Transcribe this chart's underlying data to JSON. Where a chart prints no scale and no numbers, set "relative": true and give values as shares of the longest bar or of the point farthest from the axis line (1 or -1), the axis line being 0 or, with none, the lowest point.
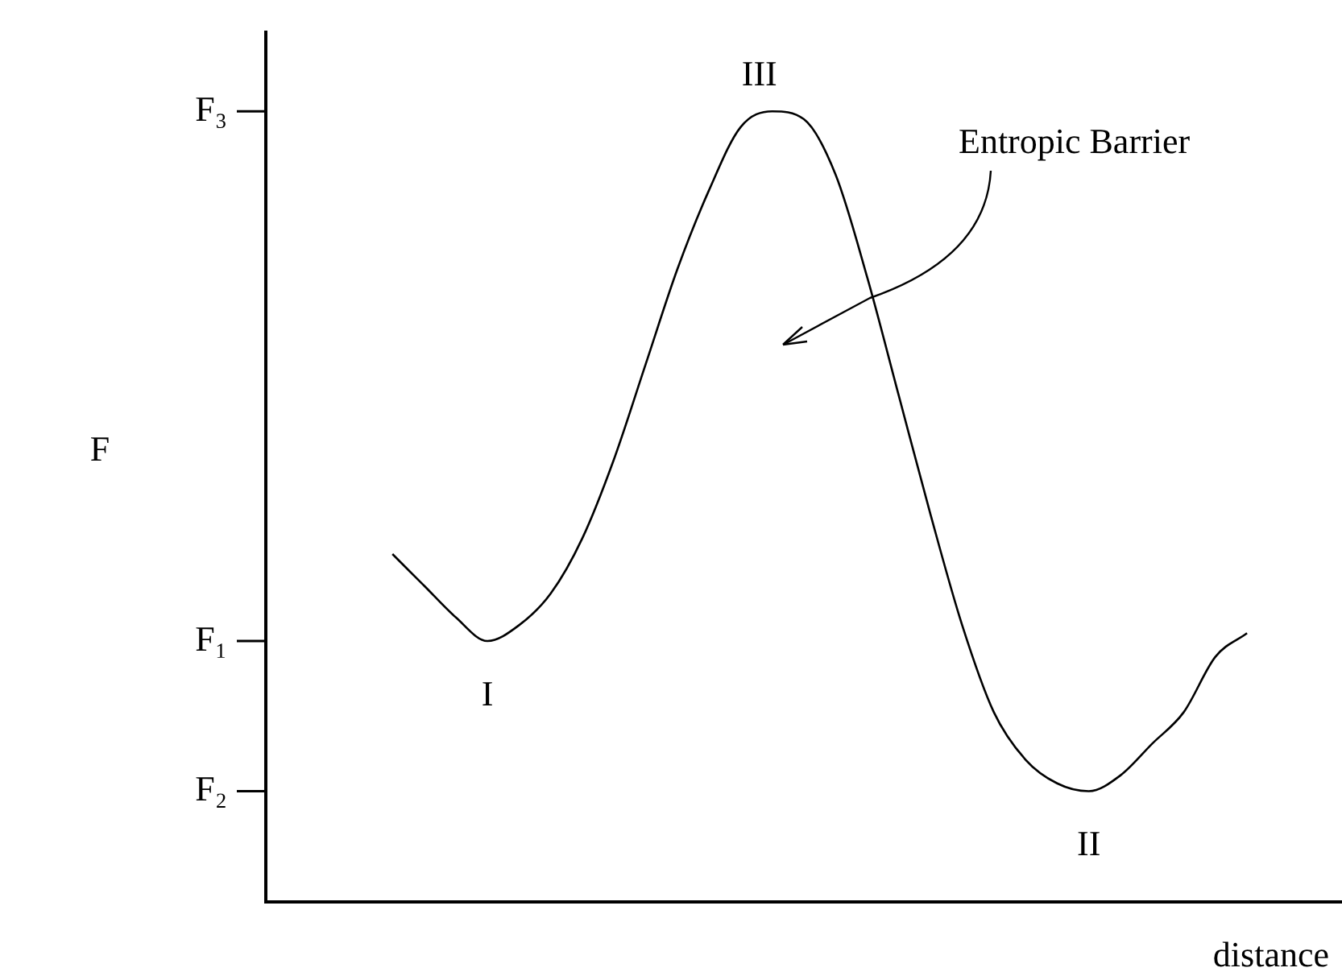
{
  "chart_data": {
    "type": "line",
    "relative": true,
    "xlabel": "distance",
    "ylabel": "F",
    "color": "#000000",
    "marker": "none",
    "categories": [
      null,
      null,
      null,
      null,
      null,
      null,
      null,
      null,
      null,
      null,
      null,
      null,
      null,
      null,
      null,
      null,
      null,
      null,
      null,
      null,
      null,
      null,
      null,
      null,
      null,
      null,
      null,
      null,
      null,
      null,
      null,
      null,
      null,
      null,
      null
    ],
    "values": [
      null,
      null,
      null,
      null,
      0.44,
      0.4,
      0.36,
      0.33,
      0.35,
      0.39,
      0.46,
      0.56,
      0.68,
      0.8,
      0.9,
      0.98,
      1,
      0.99,
      0.92,
      0.79,
      0.64,
      0.49,
      0.35,
      0.24,
      0.18,
      0.15,
      0.14,
      0.16,
      0.2,
      0.24,
      0.31,
      0.34,
      null,
      null,
      null
    ],
    "ref_lines": [
      {
        "axis": "y",
        "value": 0.33,
        "label": "F₁"
      },
      {
        "axis": "y",
        "value": 0.14,
        "label": "F₂"
      },
      {
        "axis": "y",
        "value": 1,
        "label": "F₃"
      }
    ],
    "annotations": [
      {
        "text": "I",
        "y": 0.33
      },
      {
        "text": "III",
        "y": 1
      },
      {
        "text": "II",
        "y": 0.14
      },
      "Entropic Barrier"
    ]
  }
}
